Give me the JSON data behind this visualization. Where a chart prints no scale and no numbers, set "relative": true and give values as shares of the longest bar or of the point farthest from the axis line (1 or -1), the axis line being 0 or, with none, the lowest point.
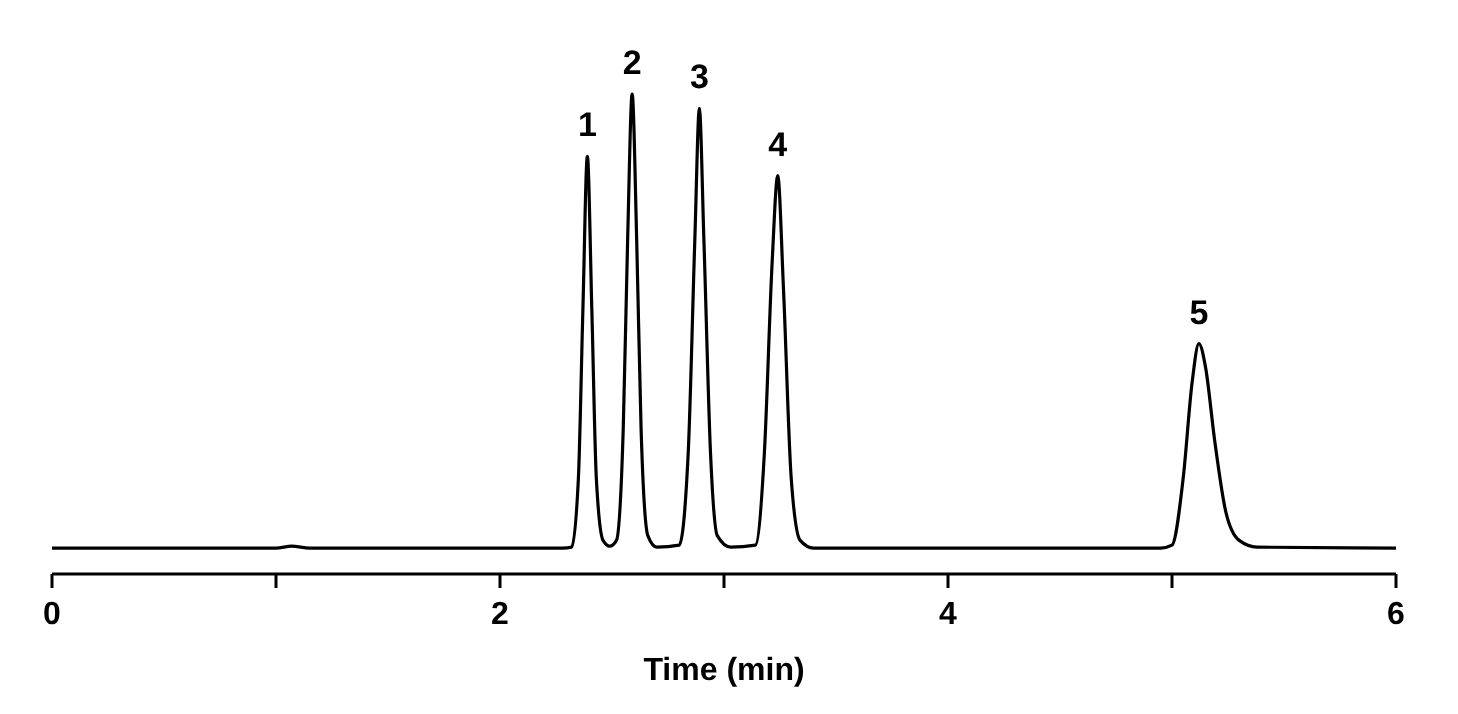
{
  "chart_data": {
    "type": "line",
    "relative": true,
    "xlabel": "Time (min)",
    "xlim": [
      0,
      6
    ],
    "xticks": [
      0,
      {
        "value": 1,
        "label": null
      },
      2,
      {
        "value": 3,
        "label": null
      },
      4,
      {
        "value": 5,
        "label": null
      },
      6
    ],
    "grid": false,
    "line_style": "solid",
    "series": [
      {
        "color": "#000000",
        "x": [
          0,
          1.0,
          1.07,
          1.15,
          2.28,
          2.32,
          2.35,
          2.37,
          2.39,
          2.41,
          2.43,
          2.46,
          2.49,
          2.52,
          2.55,
          2.57,
          2.59,
          2.61,
          2.63,
          2.66,
          2.7,
          2.8,
          2.84,
          2.87,
          2.89,
          2.91,
          2.94,
          2.97,
          3.03,
          3.14,
          3.18,
          3.215,
          3.24,
          3.265,
          3.3,
          3.34,
          3.4,
          4.95,
          5.0,
          5.05,
          5.09,
          5.12,
          5.15,
          5.19,
          5.24,
          5.3,
          5.38,
          6
        ],
        "values": [
          0.054,
          0.054,
          0.058,
          0.054,
          0.054,
          0.056,
          0.2,
          0.55,
          0.87,
          0.55,
          0.2,
          0.07,
          0.058,
          0.07,
          0.3,
          0.7,
          1,
          0.7,
          0.3,
          0.08,
          0.056,
          0.06,
          0.25,
          0.7,
          0.97,
          0.7,
          0.25,
          0.08,
          0.056,
          0.06,
          0.25,
          0.65,
          0.83,
          0.6,
          0.2,
          0.07,
          0.054,
          0.054,
          0.06,
          0.2,
          0.4,
          0.48,
          0.43,
          0.28,
          0.13,
          0.07,
          0.056,
          0.054
        ]
      }
    ],
    "annotations": [
      {
        "text": "1",
        "x": 2.39,
        "y": 0.87
      },
      {
        "text": "2",
        "x": 2.59,
        "y": 1
      },
      {
        "text": "3",
        "x": 2.89,
        "y": 0.97
      },
      {
        "text": "4",
        "x": 3.24,
        "y": 0.83
      },
      {
        "text": "5",
        "x": 5.12,
        "y": 0.48
      }
    ]
  }
}
